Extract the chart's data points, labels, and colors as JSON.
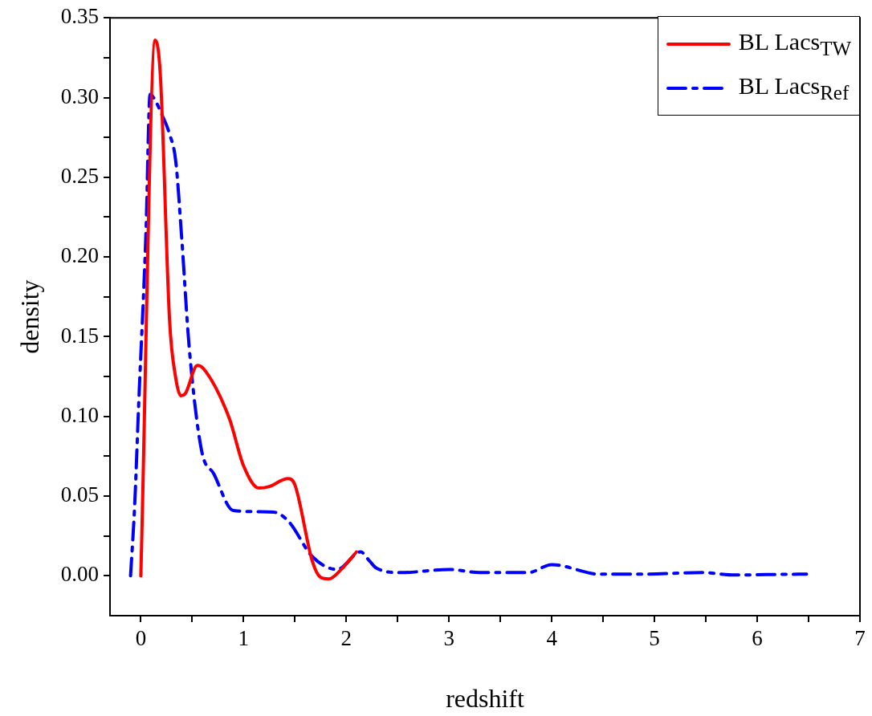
{
  "chart_data": {
    "type": "line",
    "xlabel": "redshift",
    "ylabel": "density",
    "xlim": [
      -0.3,
      7
    ],
    "xticks": [
      0,
      {
        "value": 0.5,
        "label": null
      },
      1,
      {
        "value": 1.5,
        "label": null
      },
      2,
      {
        "value": 2.5,
        "label": null
      },
      3,
      {
        "value": 3.5,
        "label": null
      },
      4,
      {
        "value": 4.5,
        "label": null
      },
      5,
      {
        "value": 5.5,
        "label": null
      },
      6,
      {
        "value": 6.5,
        "label": null
      },
      7
    ],
    "ylim": [
      -0.025,
      0.35
    ],
    "yticks": [
      {
        "value": 0,
        "label": "0.00"
      },
      {
        "value": 0.025,
        "label": null
      },
      {
        "value": 0.05,
        "label": "0.05"
      },
      {
        "value": 0.075,
        "label": null
      },
      {
        "value": 0.1,
        "label": "0.10"
      },
      {
        "value": 0.125,
        "label": null
      },
      {
        "value": 0.15,
        "label": "0.15"
      },
      {
        "value": 0.175,
        "label": null
      },
      {
        "value": 0.2,
        "label": "0.20"
      },
      {
        "value": 0.225,
        "label": null
      },
      {
        "value": 0.25,
        "label": "0.25"
      },
      {
        "value": 0.275,
        "label": null
      },
      {
        "value": 0.3,
        "label": "0.30"
      },
      {
        "value": 0.325,
        "label": null
      },
      {
        "value": 0.35,
        "label": "0.35"
      }
    ],
    "grid": false,
    "legend": "top right",
    "marker": "none",
    "series": [
      {
        "name": "BL Lacs$_{TW}$",
        "color": "#ff0000",
        "line_style": "solid",
        "x": [
          0,
          0.14,
          0.19,
          0.28,
          0.34,
          0.39,
          0.43,
          0.55,
          0.61,
          0.86,
          1.0,
          1.15,
          1.25,
          1.43,
          1.5,
          1.67,
          1.75,
          1.83,
          1.95,
          2.1
        ],
        "values": [
          0,
          0.336,
          0.314,
          0.16,
          0.124,
          0.113,
          0.114,
          0.132,
          0.13,
          0.099,
          0.069,
          0.055,
          0.056,
          0.061,
          0.057,
          0.009,
          -0.001,
          -0.002,
          0.004,
          0.015
        ]
      },
      {
        "name": "BL Lacs$_{Ref}$",
        "color": "#0000ff",
        "line_style": "dashed",
        "x": [
          -0.1,
          -0.06,
          -0.02,
          0.05,
          0.09,
          0.15,
          0.2,
          0.28,
          0.34,
          0.4,
          0.47,
          0.59,
          0.71,
          0.9,
          1.29,
          1.44,
          1.67,
          1.91,
          2.14,
          2.23,
          2.29,
          2.53,
          3.0,
          3.3,
          3.77,
          4.0,
          4.47,
          4.85,
          5.47,
          5.78,
          6.4,
          6.48
        ],
        "values": [
          0,
          0.044,
          0.109,
          0.215,
          0.302,
          0.297,
          0.29,
          0.277,
          0.26,
          0.21,
          0.144,
          0.079,
          0.064,
          0.041,
          0.04,
          0.034,
          0.012,
          0.004,
          0.015,
          0.009,
          0.005,
          0.002,
          0.004,
          0.002,
          0.002,
          0.007,
          0.001,
          0.001,
          0.002,
          0.0005,
          0.001,
          0.001
        ]
      }
    ]
  }
}
